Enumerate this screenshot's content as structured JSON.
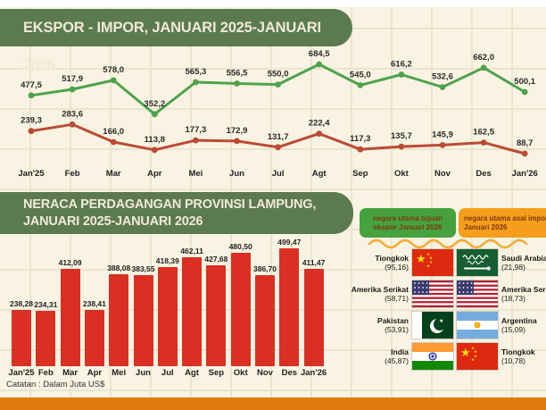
{
  "banners": {
    "top": "EKSPOR - IMPOR, JANUARI 2025-JANUARI 2026",
    "middle_line1": "NERACA PERDAGANGAN PROVINSI LAMPUNG,",
    "middle_line2": "JANUARI 2025-JANUARI 2026"
  },
  "note": "Catatan : Dalam Juta US$",
  "colors": {
    "background": "#f8f3e2",
    "banner_green": "#5c7a50",
    "ekspor_line": "#4ea24c",
    "impor_line": "#bc4a33",
    "bar_red": "#da2f23",
    "header_box_green": "#46a23c",
    "header_box_orange": "#f59e1b",
    "bottom_bar_orange": "#e17a0c"
  },
  "chart_data": [
    {
      "type": "line",
      "title": "EKSPOR - IMPOR, JANUARI 2025-JANUARI 2026",
      "categories": [
        "Jan'25",
        "Feb",
        "Mar",
        "Apr",
        "Mei",
        "Jun",
        "Jul",
        "Agt",
        "Sep",
        "Okt",
        "Nov",
        "Des",
        "Jan'26"
      ],
      "series": [
        {
          "name": "Ekspor",
          "color": "#4ea24c",
          "values": [
            477.5,
            517.9,
            578.0,
            352.2,
            565.3,
            556.5,
            550.0,
            684.5,
            545.0,
            616.2,
            532.6,
            662.0,
            500.1
          ]
        },
        {
          "name": "Impor",
          "color": "#bc4a33",
          "values": [
            239.3,
            283.6,
            166.0,
            113.8,
            177.3,
            172.9,
            131.7,
            222.4,
            117.3,
            135.7,
            145.9,
            162.5,
            88.7
          ]
        }
      ],
      "unit": "Juta US$",
      "data_labels": true,
      "legend": "none",
      "grid": false,
      "decimal_separator": ","
    },
    {
      "type": "bar",
      "title": "NERACA PERDAGANGAN PROVINSI LAMPUNG, JANUARI 2025-JANUARI 2026",
      "categories": [
        "Jan'25",
        "Feb",
        "Mar",
        "Apr",
        "Mei",
        "Jun",
        "Jul",
        "Agt",
        "Sep",
        "Okt",
        "Nov",
        "Des",
        "Jan'26"
      ],
      "values": [
        238.28,
        234.31,
        412.09,
        238.41,
        388.08,
        383.55,
        418.39,
        462.11,
        427.68,
        480.5,
        386.7,
        499.47,
        411.47
      ],
      "color": "#da2f23",
      "unit": "Juta US$",
      "note": "Catatan : Dalam Juta US$",
      "data_labels": true,
      "decimal_separator": ","
    }
  ],
  "panels": {
    "export_header": "negara utama tujuan ekspor Januari 2026",
    "import_header": "negara utama asal impor Januari 2026",
    "export_countries": [
      {
        "name": "Tiongkok",
        "value": "(95,16)",
        "flag": "cn"
      },
      {
        "name": "Amerika Serikat",
        "value": "(58,71)",
        "flag": "us"
      },
      {
        "name": "Pakistan",
        "value": "(53,91)",
        "flag": "pk"
      },
      {
        "name": "India",
        "value": "(45,87)",
        "flag": "in"
      }
    ],
    "import_countries": [
      {
        "name": "Saudi Arabia",
        "value": "(21,98)",
        "flag": "sa"
      },
      {
        "name": "Amerika Serikat",
        "value": "(18,73)",
        "flag": "us"
      },
      {
        "name": "Argentina",
        "value": "(15,09)",
        "flag": "ar"
      },
      {
        "name": "Tiongkok",
        "value": "(10,78)",
        "flag": "cn"
      }
    ]
  }
}
